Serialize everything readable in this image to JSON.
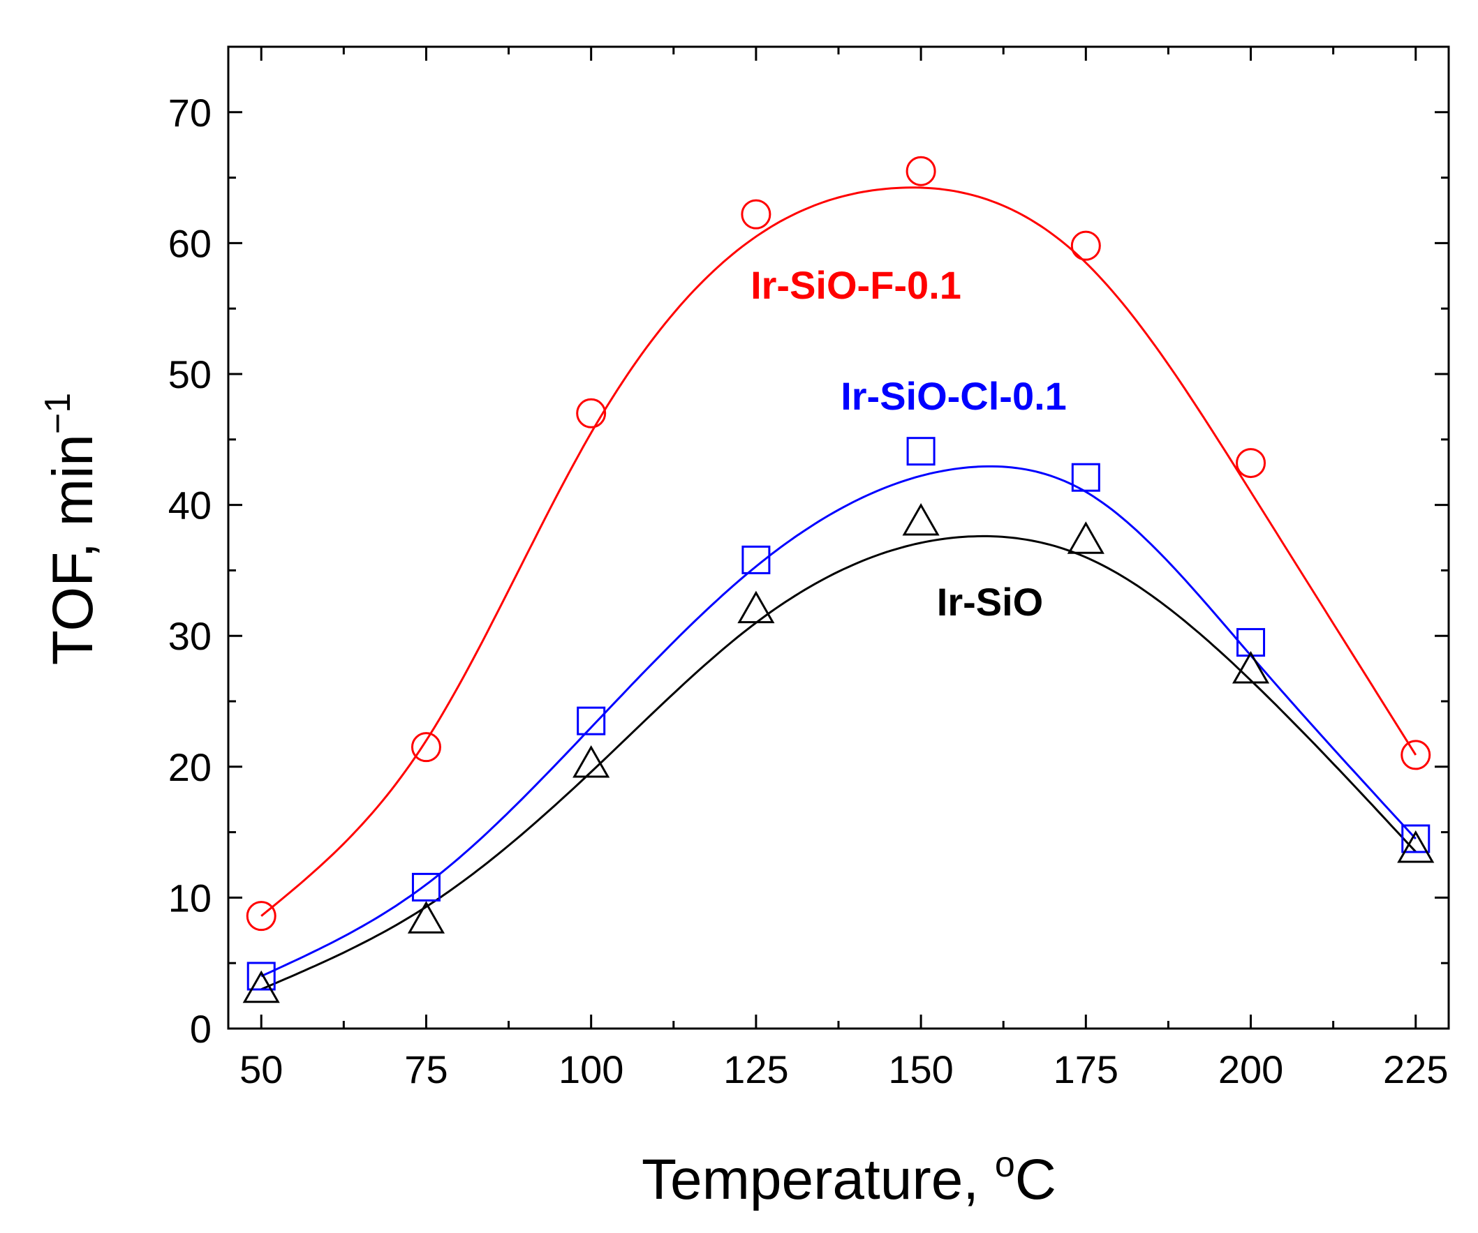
{
  "chart_data": {
    "type": "scatter",
    "x_label_prefix": "Temperature, ",
    "x_label_sup": "o",
    "x_label_suffix": "C",
    "y_label_prefix": "TOF, min",
    "y_label_sup": "−1",
    "xlim": [
      45,
      230
    ],
    "ylim": [
      0,
      75
    ],
    "x_ticks_major": [
      50,
      75,
      100,
      125,
      150,
      175,
      200,
      225
    ],
    "x_ticks_minor": [
      62.5,
      87.5,
      112.5,
      137.5,
      162.5,
      187.5,
      212.5
    ],
    "y_ticks_major": [
      0,
      10,
      20,
      30,
      40,
      50,
      60,
      70
    ],
    "y_ticks_minor": [
      5,
      15,
      25,
      35,
      45,
      55,
      65
    ],
    "x_tick_labels": [
      "50",
      "75",
      "100",
      "125",
      "150",
      "175",
      "200",
      "225"
    ],
    "y_tick_labels": [
      "0",
      "10",
      "20",
      "30",
      "40",
      "50",
      "60",
      "70"
    ],
    "series": [
      {
        "name": "Ir-SiO-F-0.1",
        "color": "#ff0000",
        "marker": "circle",
        "x": [
          50,
          75,
          100,
          125,
          150,
          175,
          200,
          225
        ],
        "y": [
          8.6,
          21.5,
          47.0,
          62.2,
          65.5,
          59.8,
          43.2,
          20.9
        ],
        "fit_x": [
          50,
          75,
          100,
          125,
          146,
          175,
          200,
          225
        ],
        "fit_y": [
          8.6,
          22.0,
          45.5,
          60.5,
          64.2,
          58.5,
          41.0,
          20.9
        ]
      },
      {
        "name": "Ir-SiO-Cl-0.1",
        "color": "#0000ff",
        "marker": "square",
        "x": [
          50,
          75,
          100,
          125,
          150,
          175,
          200,
          225
        ],
        "y": [
          4.0,
          10.8,
          23.5,
          35.8,
          44.1,
          42.1,
          29.5,
          14.5
        ],
        "fit_x": [
          50,
          75,
          100,
          125,
          158,
          175,
          200,
          225
        ],
        "fit_y": [
          4.0,
          11.0,
          23.0,
          35.3,
          42.9,
          41.0,
          28.5,
          14.5
        ]
      },
      {
        "name": "Ir-SiO",
        "color": "#000000",
        "marker": "triangle",
        "x": [
          50,
          75,
          100,
          125,
          150,
          175,
          200,
          225
        ],
        "y": [
          3.0,
          8.3,
          20.2,
          32.0,
          38.7,
          37.3,
          27.4,
          13.7
        ],
        "fit_x": [
          50,
          75,
          100,
          125,
          158,
          175,
          200,
          225
        ],
        "fit_y": [
          3.0,
          9.3,
          19.6,
          31.0,
          37.6,
          36.0,
          26.6,
          13.5
        ]
      }
    ]
  }
}
